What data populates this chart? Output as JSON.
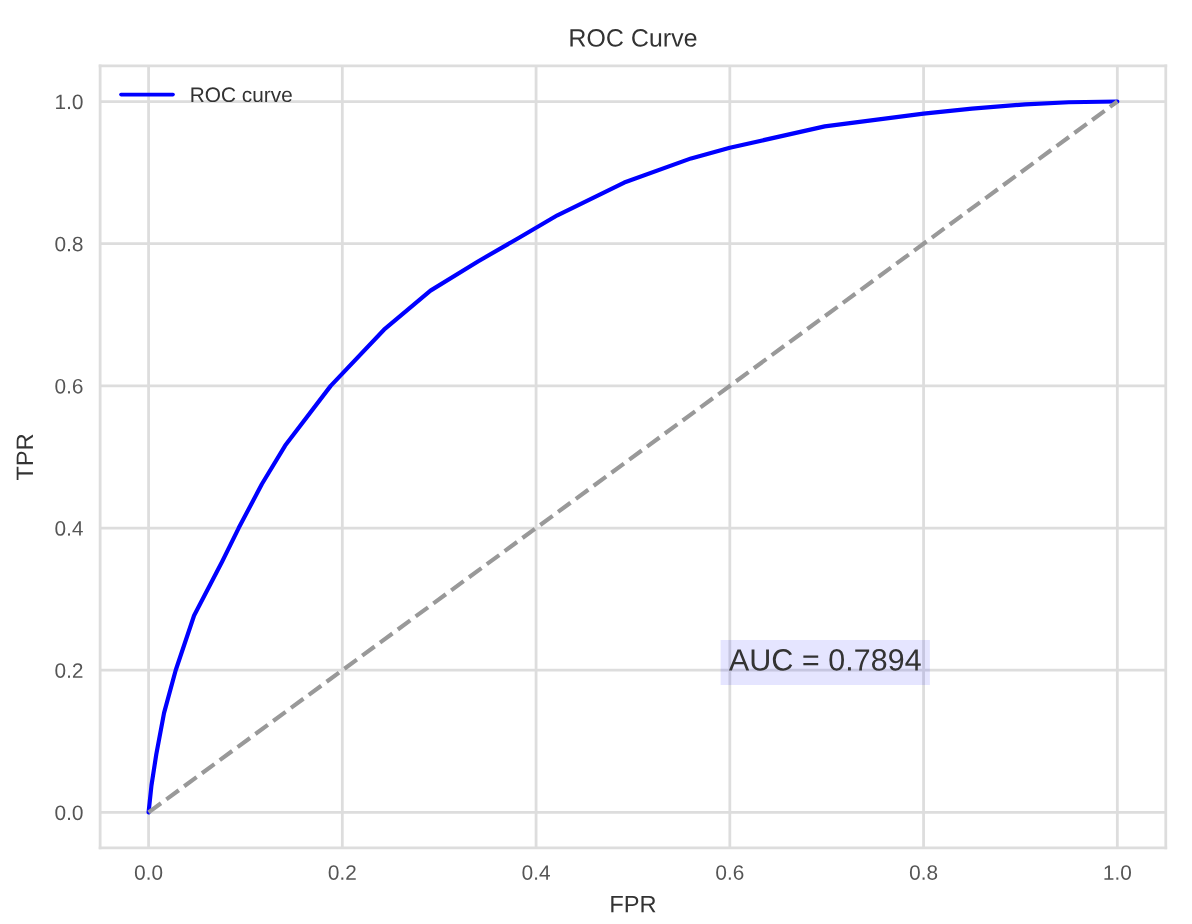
{
  "chart_data": {
    "type": "line",
    "title": "ROC Curve",
    "xlabel": "FPR",
    "ylabel": "TPR",
    "series": [
      {
        "name": "ROC curve",
        "color": "#0000ff",
        "line_style": "solid",
        "x": [
          0,
          0.003,
          0.008,
          0.016,
          0.028,
          0.047,
          0.076,
          0.093,
          0.117,
          0.141,
          0.188,
          0.243,
          0.291,
          0.34,
          0.382,
          0.422,
          0.491,
          0.56,
          0.6,
          0.698,
          0.8,
          0.85,
          0.905,
          0.95,
          1.0
        ],
        "values": [
          0,
          0.038,
          0.082,
          0.14,
          0.2,
          0.277,
          0.353,
          0.4,
          0.462,
          0.516,
          0.6,
          0.679,
          0.734,
          0.775,
          0.808,
          0.84,
          0.886,
          0.92,
          0.935,
          0.965,
          0.983,
          0.99,
          0.996,
          0.999,
          1.0
        ]
      },
      {
        "color": "#999999",
        "line_style": "dashed",
        "x": [
          0,
          1
        ],
        "values": [
          0,
          1
        ]
      }
    ],
    "annotations": [
      "AUC = 0.7894"
    ],
    "xlim": [
      -0.05,
      1.05
    ],
    "ylim": [
      -0.05,
      1.05
    ],
    "xticks": [
      {
        "value": 0,
        "label": "0.0"
      },
      0.2,
      0.4,
      0.6,
      0.8,
      {
        "value": 1,
        "label": "1.0"
      }
    ],
    "yticks": [
      {
        "value": 0,
        "label": "0.0"
      },
      0.2,
      0.4,
      0.6,
      0.8,
      {
        "value": 1,
        "label": "1.0"
      }
    ],
    "grid": true,
    "legend": "top left"
  }
}
